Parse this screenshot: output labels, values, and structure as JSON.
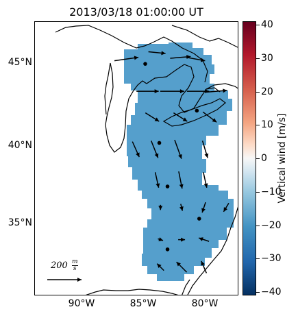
{
  "title": "2013/03/18 01:00:00 UT",
  "latitude_labels": [
    "45°N",
    "40°N",
    "35°N"
  ],
  "longitude_labels": [
    "90°W",
    "85°W",
    "80°W"
  ],
  "colorbar": {
    "label": "Vertical wind [m/s]",
    "ticks": [
      "40",
      "30",
      "20",
      "10",
      "0",
      "−10",
      "−20",
      "−30",
      "−40"
    ],
    "range": [
      -40,
      40
    ],
    "colormap": "RdBu_r",
    "low_color": "#053061",
    "mid_color": "#f7f7f7",
    "high_color": "#67001f",
    "field_color": "#559fcc"
  },
  "map_data": {
    "projection": "equirectangular",
    "lon_range": [
      -94.7,
      -77.3
    ],
    "lat_range": [
      30.5,
      47.5
    ],
    "vertical_wind_field_value_mps": -20,
    "reference_vector": {
      "magnitude": "200",
      "unit_num": "m",
      "unit_den": "s"
    },
    "stations": [
      {
        "lon": -85.3,
        "lat": 44.9
      },
      {
        "lon": -80.9,
        "lat": 42.0
      },
      {
        "lon": -84.1,
        "lat": 40.0
      },
      {
        "lon": -83.4,
        "lat": 37.3
      },
      {
        "lon": -80.7,
        "lat": 35.3
      },
      {
        "lon": -83.4,
        "lat": 33.4
      }
    ],
    "wind_vectors": [
      {
        "lon": -86.9,
        "lat": 45.2,
        "u": 140,
        "v": 20
      },
      {
        "lon": -84.3,
        "lat": 45.6,
        "u": 100,
        "v": -10
      },
      {
        "lon": -82.3,
        "lat": 45.3,
        "u": 120,
        "v": 10
      },
      {
        "lon": -81.0,
        "lat": 45.2,
        "u": 110,
        "v": -20
      },
      {
        "lon": -85.1,
        "lat": 43.2,
        "u": 130,
        "v": 0
      },
      {
        "lon": -83.0,
        "lat": 43.2,
        "u": 140,
        "v": 0
      },
      {
        "lon": -80.8,
        "lat": 43.2,
        "u": 130,
        "v": 0
      },
      {
        "lon": -79.2,
        "lat": 43.2,
        "u": 120,
        "v": 10
      },
      {
        "lon": -84.7,
        "lat": 41.6,
        "u": 80,
        "v": -50
      },
      {
        "lon": -82.3,
        "lat": 41.6,
        "u": 80,
        "v": -50
      },
      {
        "lon": -79.8,
        "lat": 41.6,
        "u": 80,
        "v": -60
      },
      {
        "lon": -86.1,
        "lat": 39.6,
        "u": 40,
        "v": -90
      },
      {
        "lon": -84.5,
        "lat": 39.6,
        "u": 40,
        "v": -100
      },
      {
        "lon": -82.5,
        "lat": 39.6,
        "u": 40,
        "v": -110
      },
      {
        "lon": -80.2,
        "lat": 39.6,
        "u": 30,
        "v": -100
      },
      {
        "lon": -84.3,
        "lat": 37.7,
        "u": 20,
        "v": -90
      },
      {
        "lon": -82.3,
        "lat": 37.7,
        "u": 20,
        "v": -100
      },
      {
        "lon": -80.2,
        "lat": 37.7,
        "u": 20,
        "v": -90
      },
      {
        "lon": -84.0,
        "lat": 36.0,
        "u": 0,
        "v": -30
      },
      {
        "lon": -82.2,
        "lat": 36.0,
        "u": 10,
        "v": -40
      },
      {
        "lon": -80.3,
        "lat": 36.0,
        "u": -20,
        "v": -60
      },
      {
        "lon": -78.4,
        "lat": 36.0,
        "u": -30,
        "v": -50
      },
      {
        "lon": -84.0,
        "lat": 34.0,
        "u": 30,
        "v": -10
      },
      {
        "lon": -82.2,
        "lat": 34.0,
        "u": 40,
        "v": 0
      },
      {
        "lon": -80.3,
        "lat": 34.0,
        "u": -60,
        "v": 20
      },
      {
        "lon": -84.0,
        "lat": 32.3,
        "u": -40,
        "v": 40
      },
      {
        "lon": -82.2,
        "lat": 32.3,
        "u": -60,
        "v": 60
      },
      {
        "lon": -80.3,
        "lat": 32.3,
        "u": -30,
        "v": 70
      }
    ]
  }
}
